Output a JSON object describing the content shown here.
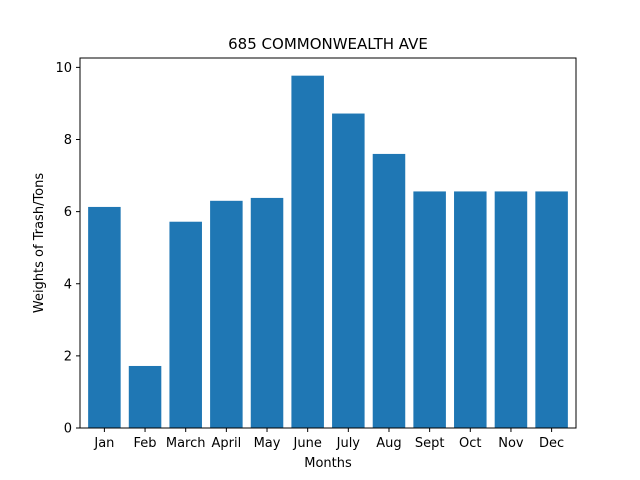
{
  "chart_data": {
    "type": "bar",
    "title": "685 COMMONWEALTH AVE",
    "xlabel": "Months",
    "ylabel": "Weights of Trash/Tons",
    "categories": [
      "Jan",
      "Feb",
      "March",
      "April",
      "May",
      "June",
      "July",
      "Aug",
      "Sept",
      "Oct",
      "Nov",
      "Dec"
    ],
    "values": [
      6.13,
      1.72,
      5.72,
      6.3,
      6.38,
      9.77,
      8.72,
      7.6,
      6.56,
      6.56,
      6.56,
      6.56
    ],
    "ylim": [
      0,
      10.26
    ],
    "yticks": [
      0,
      2,
      4,
      6,
      8,
      10
    ],
    "bar_color": "#1f77b4",
    "grid": false,
    "legend": "none"
  }
}
